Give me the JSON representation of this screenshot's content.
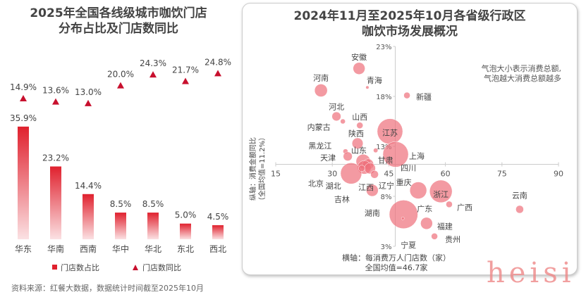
{
  "left_chart": {
    "title_line1": "2025年全国各线级城市咖饮门店",
    "title_line2": "分布占比及门店数同比"
  },
  "right_chart": {
    "title_line1": "2024年11月至2025年10月各省级行政区",
    "title_line2": "咖饮市场发展概况",
    "note_line1": "气泡大小表示消费总额,",
    "note_line2": "气泡越大消费总额越多"
  },
  "source": "资料来源：红餐大数据，数据统计时间截至2025年10月",
  "watermark": "heisi",
  "colors": {
    "bar": "#e0212e",
    "bubble": "#ee6f7a"
  },
  "chart_data": [
    {
      "type": "bar",
      "title": "2025年全国各线级城市咖饮门店分布占比及门店数同比",
      "categories": [
        "华东",
        "华南",
        "西南",
        "华中",
        "华北",
        "东北",
        "西北"
      ],
      "series": [
        {
          "name": "门店数占比",
          "kind": "bar",
          "values": [
            35.9,
            23.2,
            14.4,
            8.5,
            8.5,
            5.0,
            4.5
          ],
          "labels": [
            "35.9%",
            "23.2%",
            "14.4%",
            "8.5%",
            "8.5%",
            "5.0%",
            "4.5%"
          ]
        },
        {
          "name": "门店数同比",
          "kind": "marker",
          "values": [
            14.9,
            13.6,
            13.0,
            20.0,
            24.3,
            21.7,
            24.8
          ],
          "labels": [
            "14.9%",
            "13.6%",
            "13.0%",
            "20.0%",
            "24.3%",
            "21.7%",
            "24.8%"
          ]
        }
      ],
      "legend": "bottom"
    },
    {
      "type": "scatter",
      "title": "2024年11月至2025年10月各省级行政区咖饮市场发展概况",
      "xlabel": "横轴：每消费万人门店数（家）",
      "xlabel2": "全国均值=46.7家",
      "ylabel": "纵轴：消费金额同比",
      "ylabel2": "（全国均值=11.2%）",
      "xlim": [
        15,
        90
      ],
      "ylim": [
        3,
        23
      ],
      "x_cross": 46.7,
      "y_cross": 11.2,
      "xticks": [
        15,
        30,
        45,
        60,
        75,
        90
      ],
      "xtick_labels": [
        "15",
        "30",
        "45",
        "60",
        "75",
        "90"
      ],
      "yticks": [
        3,
        8,
        13,
        18,
        23
      ],
      "ytick_labels": [
        "3%",
        "8%",
        "13%",
        "18%",
        "23%"
      ],
      "points": [
        {
          "name": "安徽",
          "x": 37.1,
          "y": 20.8,
          "size": 7
        },
        {
          "name": "青海",
          "x": 39.3,
          "y": 18.9,
          "size": 0.5
        },
        {
          "name": "河南",
          "x": 27.0,
          "y": 18.6,
          "size": 8
        },
        {
          "name": "新疆",
          "x": 49.8,
          "y": 18.1,
          "size": 2
        },
        {
          "name": "河北",
          "x": 31.1,
          "y": 16.0,
          "size": 4
        },
        {
          "name": "内蒙古",
          "x": 32.8,
          "y": 15.5,
          "size": 1.2
        },
        {
          "name": "山西",
          "x": 37.3,
          "y": 15.1,
          "size": 2
        },
        {
          "name": "江苏",
          "x": 45.3,
          "y": 14.5,
          "size": 32
        },
        {
          "name": "陕西",
          "x": 36.7,
          "y": 13.3,
          "size": 6
        },
        {
          "name": "甘肃",
          "x": 41.5,
          "y": 12.6,
          "size": 1
        },
        {
          "name": "上海",
          "x": 46.8,
          "y": 12.2,
          "size": 32
        },
        {
          "name": "黑龙江",
          "x": 33.5,
          "y": 12.5,
          "size": 1.2
        },
        {
          "name": "天津",
          "x": 34.1,
          "y": 12.0,
          "size": 4
        },
        {
          "name": "山东",
          "x": 38.2,
          "y": 11.5,
          "size": 10
        },
        {
          "name": "辽宁",
          "x": 39.5,
          "y": 11.2,
          "size": 6
        },
        {
          "name": "湖北",
          "x": 38.5,
          "y": 10.9,
          "size": 9
        },
        {
          "name": "重庆",
          "x": 40.0,
          "y": 10.8,
          "size": 6
        },
        {
          "name": "北京",
          "x": 35.0,
          "y": 10.3,
          "size": 22
        },
        {
          "name": "吉林",
          "x": 37.8,
          "y": 10.8,
          "size": 2
        },
        {
          "name": "江西",
          "x": 41.2,
          "y": 10.2,
          "size": 3
        },
        {
          "name": "湖南",
          "x": 40.6,
          "y": 8.6,
          "size": 7
        },
        {
          "name": "四川",
          "x": 52.8,
          "y": 8.6,
          "size": 14
        },
        {
          "name": "浙江",
          "x": 58.8,
          "y": 8.5,
          "size": 25
        },
        {
          "name": "广西",
          "x": 61.0,
          "y": 7.2,
          "size": 2
        },
        {
          "name": "云南",
          "x": 79.7,
          "y": 6.7,
          "size": 3
        },
        {
          "name": "广东",
          "x": 48.9,
          "y": 6.2,
          "size": 40
        },
        {
          "name": "宁夏",
          "x": 48.7,
          "y": 5.8,
          "size": 0.4
        },
        {
          "name": "福建",
          "x": 55.0,
          "y": 5.3,
          "size": 7
        },
        {
          "name": "贵州",
          "x": 57.1,
          "y": 4.0,
          "size": 2
        }
      ]
    }
  ]
}
